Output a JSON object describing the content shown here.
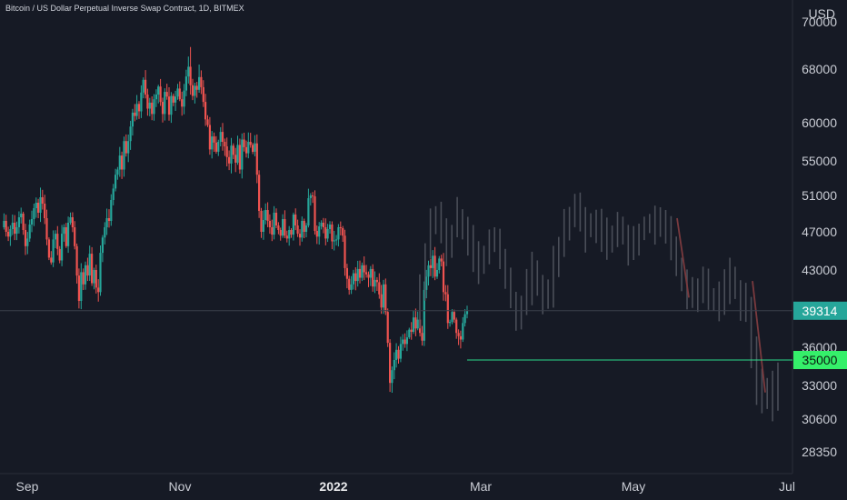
{
  "header": {
    "title": "Bitcoin / US Dollar Perpetual Inverse Swap Contract, 1D, BITMEX"
  },
  "colors": {
    "background": "#161a25",
    "up": "#26a69a",
    "down": "#ef5350",
    "ghost": "#4a4e58",
    "ghost_red": "#7a3a3e",
    "target_line": "#2bd98a",
    "current_badge": "#26a69a",
    "target_badge": "#35f06a"
  },
  "chart_data": {
    "type": "candlestick",
    "currency_label": "USD",
    "y_ticks": [
      {
        "value": 70000,
        "label": "70000"
      },
      {
        "value": 68000,
        "label": "68000"
      },
      {
        "value": 60000,
        "label": "60000"
      },
      {
        "value": 55000,
        "label": "55000"
      },
      {
        "value": 51000,
        "label": "51000"
      },
      {
        "value": 47000,
        "label": "47000"
      },
      {
        "value": 43000,
        "label": "43000"
      },
      {
        "value": 36000,
        "label": "36000"
      },
      {
        "value": 33000,
        "label": "33000"
      },
      {
        "value": 30600,
        "label": "30600"
      },
      {
        "value": 28350,
        "label": "28350"
      }
    ],
    "x_ticks": [
      {
        "label": "Sep",
        "bold": false
      },
      {
        "label": "Nov",
        "bold": false
      },
      {
        "label": "2022",
        "bold": true
      },
      {
        "label": "Mar",
        "bold": false
      },
      {
        "label": "May",
        "bold": false
      },
      {
        "label": "Jul",
        "bold": false
      }
    ],
    "current_price": {
      "value": 39314,
      "label": "39314"
    },
    "target_price": {
      "value": 35000,
      "label": "35000"
    },
    "price_path": [
      47500,
      48200,
      47000,
      46500,
      47300,
      48000,
      46800,
      47500,
      48600,
      49000,
      47200,
      45500,
      46300,
      47800,
      48400,
      49600,
      50200,
      49100,
      50800,
      50100,
      48500,
      46200,
      44300,
      43800,
      46200,
      46800,
      45200,
      44000,
      46800,
      47500,
      45500,
      48000,
      48600,
      47500,
      45500,
      42500,
      40200,
      42800,
      41700,
      43500,
      42500,
      44700,
      41800,
      43000,
      41400,
      41000,
      44800,
      46400,
      47500,
      48500,
      48200,
      50500,
      51800,
      53400,
      54000,
      55700,
      54000,
      57600,
      56000,
      57600,
      59500,
      61500,
      61000,
      62800,
      61700,
      64500,
      66400,
      64200,
      62100,
      63000,
      61300,
      63500,
      64200,
      65400,
      63100,
      61300,
      64600,
      63900,
      61200,
      64000,
      63000,
      63900,
      65100,
      63500,
      62400,
      64800,
      66900,
      68100,
      65600,
      64000,
      65500,
      64900,
      66800,
      65300,
      63100,
      60500,
      59700,
      56500,
      58200,
      57400,
      56200,
      57500,
      58800,
      57500,
      56900,
      55500,
      54700,
      57000,
      55800,
      54800,
      57100,
      54000,
      57800,
      56800,
      56000,
      57500,
      57100,
      56200,
      57300,
      53400,
      49300,
      47000,
      48300,
      49400,
      48200,
      47500,
      46700,
      49100,
      47700,
      47200,
      46600,
      48400,
      46600,
      46300,
      47200,
      46700,
      48900,
      47700,
      46800,
      46400,
      48200,
      47000,
      47700,
      50700,
      51000,
      50900,
      47100,
      46500,
      47600,
      48000,
      47500,
      46300,
      47300,
      47800,
      46000,
      46100,
      46200,
      47500,
      47400,
      46600,
      43200,
      42200,
      41200,
      41700,
      42700,
      42000,
      43100,
      42300,
      43500,
      42800,
      42600,
      42300,
      43100,
      41500,
      42100,
      41900,
      40800,
      39600,
      41700,
      39200,
      36400,
      33200,
      34200,
      35000,
      35800,
      35100,
      36300,
      36700,
      36300,
      36900,
      37600,
      37400,
      38700,
      37700,
      38500,
      37300,
      36600,
      41200,
      42400,
      43500,
      43200,
      44500,
      42400,
      43000,
      44200,
      43900,
      41000,
      40800,
      38200,
      38300,
      39200,
      38500,
      37300,
      37000,
      36700,
      38200,
      39000,
      39314
    ],
    "projection_path": [
      39314,
      41500,
      44800,
      47500,
      48200,
      46800,
      45500,
      47000,
      48800,
      47600,
      46000,
      44500,
      43200,
      44800,
      46600,
      46000,
      44000,
      42500,
      40500,
      39200,
      40000,
      41700,
      43200,
      41800,
      40600,
      41500,
      43500,
      45800,
      47600,
      48500,
      49300,
      48300,
      47000,
      48200,
      47800,
      46500,
      45800,
      46900,
      47500,
      46600,
      45300,
      46000,
      47200,
      48000,
      47700,
      48600,
      48200,
      47500,
      45000,
      43300,
      41800,
      41000,
      40100,
      40900,
      41600,
      40700,
      39800,
      40600,
      41800,
      42300,
      41500,
      40100,
      38800,
      35500,
      33000,
      32000,
      32800,
      31800,
      33500
    ]
  }
}
